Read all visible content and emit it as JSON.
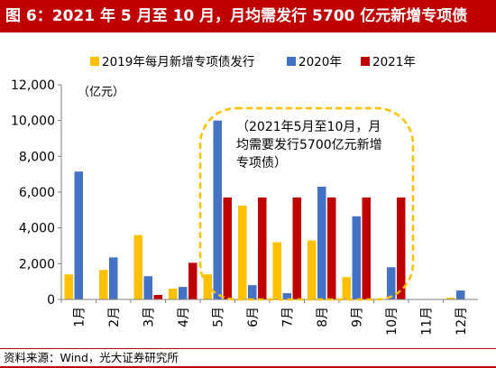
{
  "title": "图 6：2021 年 5 月至 10 月，月均需发行 5700 亿元新增专项债",
  "source": "资料来源：Wind，光大证券研究所",
  "unit_label": "（亿元）",
  "annotation": [
    "（2021年5月至10月，月",
    "均需要发行5700亿元新增",
    "专项债）"
  ],
  "colors": {
    "title_bg": "#c00000",
    "s2019": "#ffc000",
    "s2020": "#4472c4",
    "s2021": "#c00000",
    "callout": "#ffc000"
  },
  "chart_data": {
    "type": "bar",
    "categories": [
      "1月",
      "2月",
      "3月",
      "4月",
      "5月",
      "6月",
      "7月",
      "8月",
      "9月",
      "10月",
      "11月",
      "12月"
    ],
    "series": [
      {
        "name": "2019年每月新增专项债发行",
        "values": [
          1400,
          1650,
          3600,
          600,
          1400,
          5250,
          3200,
          3300,
          1250,
          0,
          0,
          100
        ]
      },
      {
        "name": "2020年",
        "values": [
          7150,
          2350,
          1300,
          700,
          10000,
          800,
          350,
          6300,
          4650,
          1800,
          0,
          500
        ]
      },
      {
        "name": "2021年",
        "values": [
          0,
          0,
          250,
          2050,
          5700,
          5700,
          5700,
          5700,
          5700,
          5700,
          0,
          0
        ]
      }
    ],
    "ylim": [
      0,
      12000
    ],
    "yticks": [
      "0",
      "2,000",
      "4,000",
      "6,000",
      "8,000",
      "10,000",
      "12,000"
    ],
    "legend_position": "top"
  }
}
